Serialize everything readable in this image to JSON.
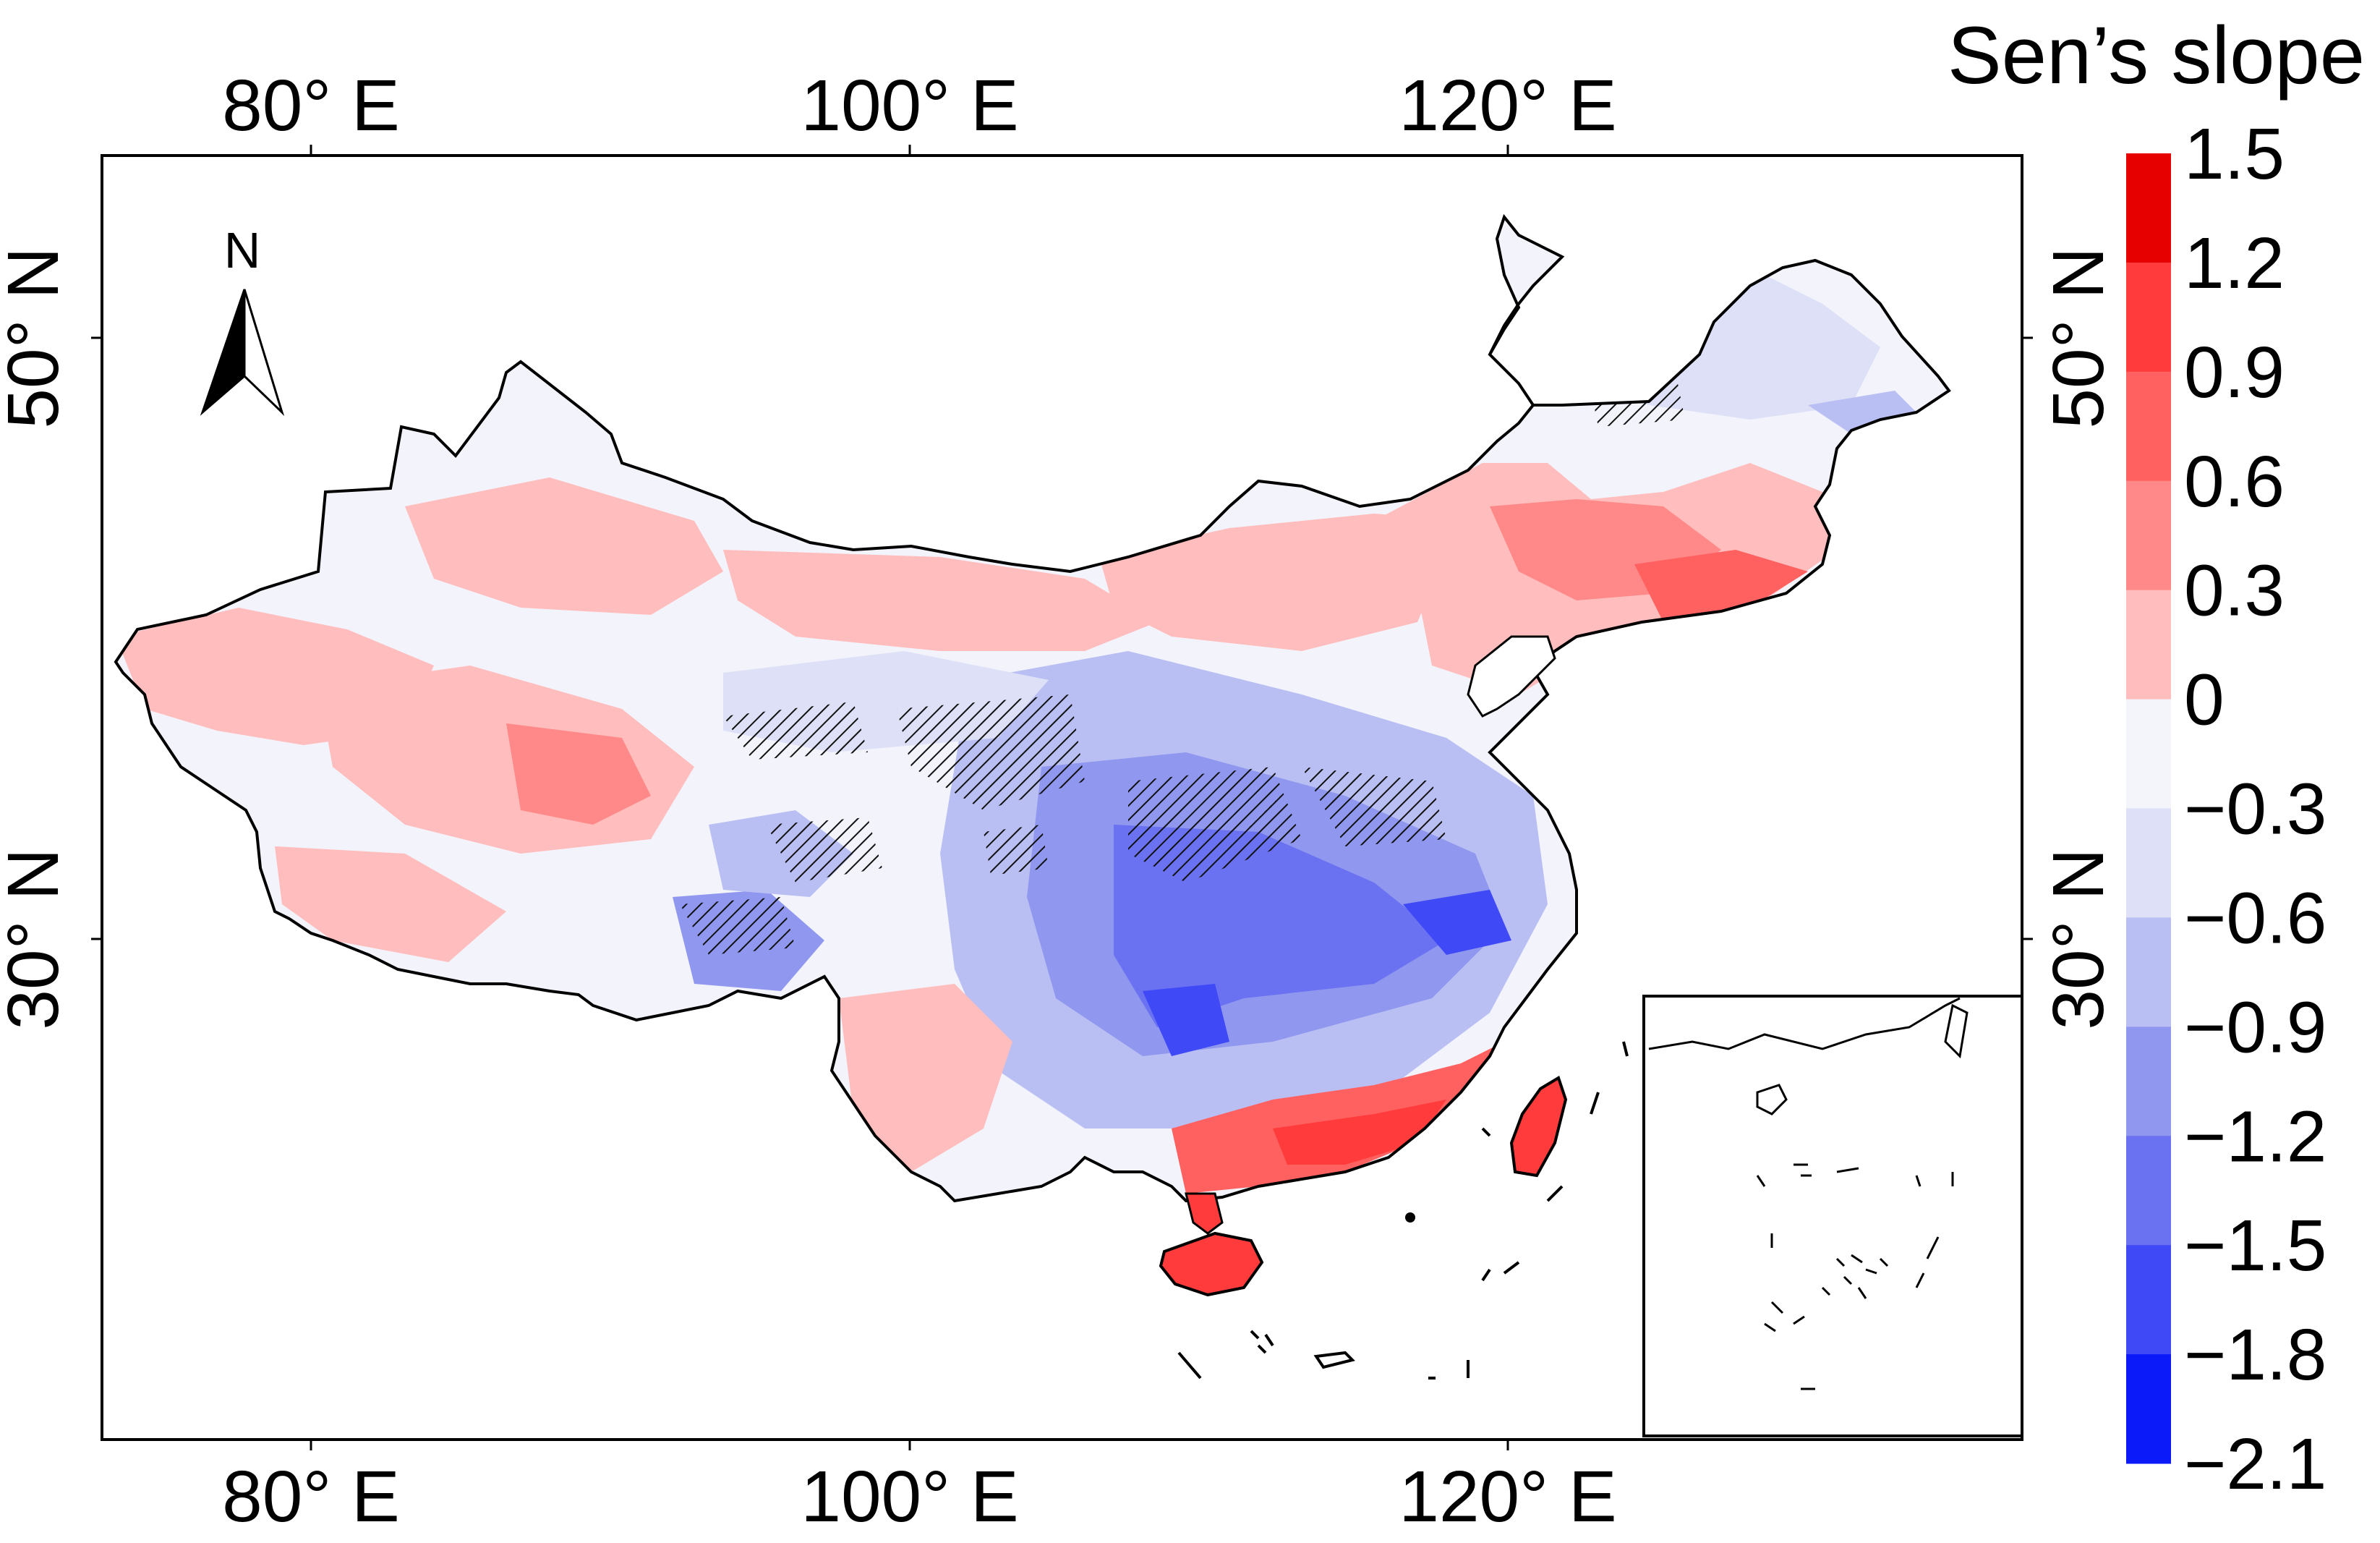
{
  "map": {
    "top_axis_labels": [
      "80° E",
      "100° E",
      "120° E"
    ],
    "bottom_axis_labels": [
      "80° E",
      "100° E",
      "120° E"
    ],
    "left_axis_labels": [
      "50° N",
      "30° N"
    ],
    "right_axis_labels": [
      "50° N",
      "30° N"
    ],
    "north_arrow_label": "N",
    "has_inset_map": true,
    "has_hatching": true
  },
  "legend": {
    "title": "Sen’s slope",
    "tick_labels": [
      "1.5",
      "1.2",
      "0.9",
      "0.6",
      "0.3",
      "0",
      "−0.3",
      "−0.6",
      "−0.9",
      "−1.2",
      "−1.5",
      "−1.8",
      "−2.1"
    ],
    "colors": [
      "#e60000",
      "#ff3b3b",
      "#ff6161",
      "#ff8888",
      "#ffbdbd",
      "#f4f4fb",
      "#dde0f6",
      "#babff3",
      "#9097ef",
      "#6a72f1",
      "#3f49f6",
      "#0b1af8"
    ]
  }
}
